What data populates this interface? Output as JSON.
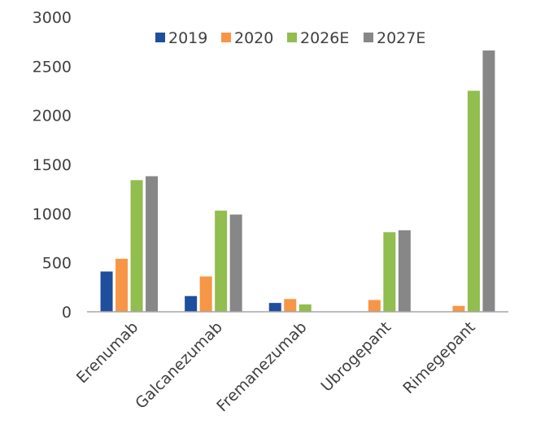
{
  "chart_data": {
    "type": "bar",
    "title": "",
    "xlabel": "",
    "ylabel": "",
    "ylim": [
      0,
      3000
    ],
    "yticks": [
      0,
      500,
      1000,
      1500,
      2000,
      2500,
      3000
    ],
    "ytick_labels": [
      "0",
      "500",
      "1000",
      "1500",
      "2000",
      "2500",
      "3000"
    ],
    "grid": false,
    "legend_position": "top",
    "categories": [
      "Erenumab",
      "Galcanezumab",
      "Fremanezumab",
      "Ubrogepant",
      "Rimegepant"
    ],
    "series": [
      {
        "name": "2019",
        "color": "#1f4e9e",
        "values": [
          410,
          160,
          90,
          null,
          null
        ]
      },
      {
        "name": "2020",
        "color": "#f79646",
        "values": [
          540,
          360,
          130,
          120,
          60
        ]
      },
      {
        "name": "2026E",
        "color": "#92bd4f",
        "values": [
          1340,
          1030,
          75,
          810,
          2250
        ]
      },
      {
        "name": "2027E",
        "color": "#878787",
        "values": [
          1380,
          990,
          null,
          830,
          2660
        ]
      }
    ]
  }
}
